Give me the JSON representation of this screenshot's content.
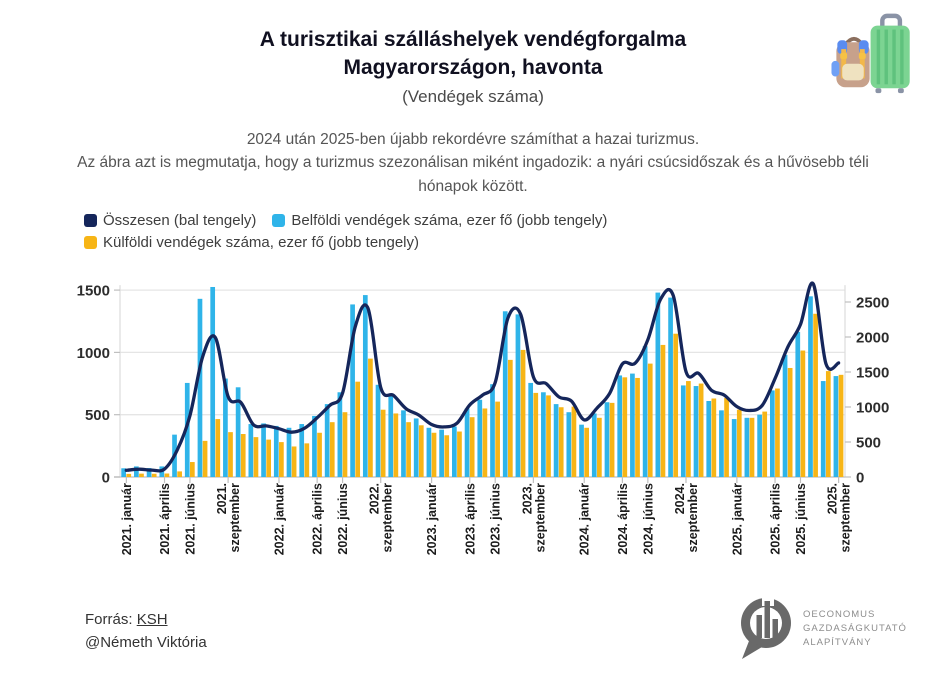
{
  "title": {
    "line1": "A turisztikai szálláshelyek vendégforgalma",
    "line2": "Magyarországon, havonta",
    "subtitle": "(Vendégek száma)"
  },
  "description": {
    "line1": "2024 után 2025-ben újabb rekordévre számíthat a hazai turizmus.",
    "line2": "Az ábra azt is megmutatja, hogy a turizmus szezonálisan miként ingadozik: a nyári csúcsidőszak és a hűvösebb téli hónapok között."
  },
  "legend": [
    {
      "label": "Összesen (bal tengely)",
      "color": "#15265b"
    },
    {
      "label": "Belföldi vendégek száma, ezer fő (jobb tengely)",
      "color": "#2fb4e9"
    },
    {
      "label": "Külföldi vendégek száma, ezer fő (jobb tengely)",
      "color": "#f7b516"
    }
  ],
  "chart_data": {
    "type": "bar+line",
    "values_unit": "ezer fő",
    "grid": "horizontal",
    "legend_position": "top-left",
    "left_axis": {
      "ticks": [
        0,
        500,
        1000,
        1500
      ]
    },
    "right_axis": {
      "ticks": [
        0,
        500,
        1000,
        1500,
        2000,
        2500
      ]
    },
    "x": [
      "2021. január",
      "2021. február",
      "2021. március",
      "2021. április",
      "2021. május",
      "2021. június",
      "2021. július",
      "2021. augusztus",
      "2021. szeptember",
      "2021. október",
      "2021. november",
      "2021. december",
      "2022. január",
      "2022. február",
      "2022. március",
      "2022. április",
      "2022. május",
      "2022. június",
      "2022. július",
      "2022. augusztus",
      "2022. szeptember",
      "2022. október",
      "2022. november",
      "2022. december",
      "2023. január",
      "2023. február",
      "2023. március",
      "2023. április",
      "2023. május",
      "2023. június",
      "2023. július",
      "2023. augusztus",
      "2023. szeptember",
      "2023. október",
      "2023. november",
      "2023. december",
      "2024. január",
      "2024. február",
      "2024. március",
      "2024. április",
      "2024. május",
      "2024. június",
      "2024. július",
      "2024. augusztus",
      "2024. szeptember",
      "2024. október",
      "2024. november",
      "2024. december",
      "2025. január",
      "2025. február",
      "2025. március",
      "2025. április",
      "2025. május",
      "2025. június",
      "2025. július",
      "2025. augusztus",
      "2025. szeptember"
    ],
    "x_tick_labels": [
      {
        "m": 0,
        "lines": [
          "2021. január"
        ]
      },
      {
        "m": 3,
        "lines": [
          "2021. április"
        ]
      },
      {
        "m": 5,
        "lines": [
          "2021. június"
        ]
      },
      {
        "m": 8,
        "lines": [
          "2021.",
          "szeptember"
        ]
      },
      {
        "m": 12,
        "lines": [
          "2022. január"
        ]
      },
      {
        "m": 15,
        "lines": [
          "2022. április"
        ]
      },
      {
        "m": 17,
        "lines": [
          "2022. június"
        ]
      },
      {
        "m": 20,
        "lines": [
          "2022.",
          "szeptember"
        ]
      },
      {
        "m": 24,
        "lines": [
          "2023. január"
        ]
      },
      {
        "m": 27,
        "lines": [
          "2023. április"
        ]
      },
      {
        "m": 29,
        "lines": [
          "2023. június"
        ]
      },
      {
        "m": 32,
        "lines": [
          "2023.",
          "szeptember"
        ]
      },
      {
        "m": 36,
        "lines": [
          "2024. január"
        ]
      },
      {
        "m": 39,
        "lines": [
          "2024. április"
        ]
      },
      {
        "m": 41,
        "lines": [
          "2024. június"
        ]
      },
      {
        "m": 44,
        "lines": [
          "2024.",
          "szeptember"
        ]
      },
      {
        "m": 48,
        "lines": [
          "2025. január"
        ]
      },
      {
        "m": 51,
        "lines": [
          "2025. április"
        ]
      },
      {
        "m": 53,
        "lines": [
          "2025. június"
        ]
      },
      {
        "m": 56,
        "lines": [
          "2025.",
          "szeptember"
        ]
      }
    ],
    "series": [
      {
        "name": "Összesen (bal tengely)",
        "type": "line",
        "color": "#15265b",
        "values": [
          95,
          112,
          98,
          113,
          385,
          875,
          1720,
          1990,
          1150,
          1065,
          745,
          730,
          690,
          640,
          695,
          845,
          1025,
          1200,
          2150,
          2410,
          1280,
          1165,
          975,
          885,
          750,
          715,
          770,
          1030,
          1170,
          1350,
          2270,
          2325,
          1430,
          1335,
          1145,
          1085,
          815,
          985,
          1195,
          1615,
          1625,
          1960,
          2540,
          2590,
          1505,
          1480,
          1240,
          1170,
          1005,
          950,
          1025,
          1405,
          1855,
          2180,
          2760,
          1620,
          1630
        ]
      },
      {
        "name": "Belföldi vendégek száma, ezer fő (jobb tengely)",
        "type": "bar",
        "color": "#2fb4e9",
        "values": [
          70,
          85,
          72,
          85,
          340,
          755,
          1430,
          1525,
          790,
          720,
          425,
          430,
          410,
          395,
          425,
          490,
          585,
          680,
          1385,
          1460,
          740,
          655,
          535,
          470,
          395,
          380,
          405,
          550,
          620,
          745,
          1330,
          1305,
          755,
          680,
          585,
          520,
          420,
          510,
          600,
          815,
          830,
          1050,
          1480,
          1440,
          735,
          730,
          610,
          535,
          465,
          475,
          500,
          695,
          980,
          1165,
          1450,
          770,
          810
        ]
      },
      {
        "name": "Külföldi vendégek száma, ezer fő (jobb tengely)",
        "type": "bar",
        "color": "#f7b516",
        "values": [
          25,
          27,
          26,
          28,
          45,
          120,
          290,
          465,
          360,
          345,
          320,
          300,
          280,
          245,
          270,
          355,
          440,
          520,
          765,
          950,
          540,
          510,
          440,
          415,
          355,
          335,
          365,
          480,
          550,
          605,
          940,
          1020,
          675,
          655,
          560,
          565,
          395,
          475,
          595,
          800,
          795,
          910,
          1060,
          1150,
          770,
          750,
          630,
          635,
          540,
          475,
          525,
          710,
          875,
          1015,
          1310,
          850,
          820
        ]
      }
    ]
  },
  "footer": {
    "source_prefix": "Forrás: ",
    "source_link": "KSH",
    "credit": "@Németh Viktória",
    "logo_lines": [
      "OECONOMUS",
      "GAZDASÁGKUTATÓ",
      "ALAPÍTVÁNY"
    ]
  }
}
